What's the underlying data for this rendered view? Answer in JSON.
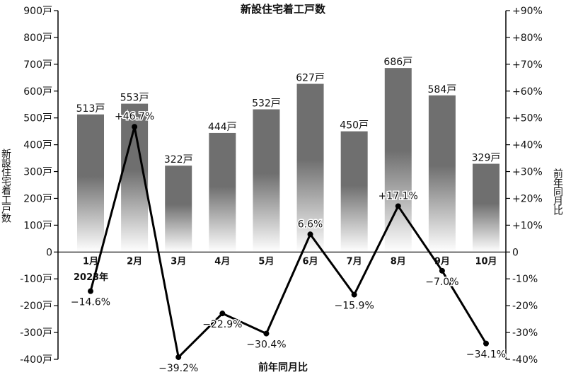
{
  "chart_data": {
    "type": "bar",
    "title": "新設住宅着工戸数",
    "xlabel": "前年同月比",
    "ylabel_left": "新設住宅着工戸数",
    "ylabel_right": "前年同月比",
    "year_label": "2023年",
    "categories": [
      "1月",
      "2月",
      "3月",
      "4月",
      "5月",
      "6月",
      "7月",
      "8月",
      "9月",
      "10月"
    ],
    "bars": {
      "values": [
        513,
        553,
        322,
        444,
        532,
        627,
        450,
        686,
        584,
        329
      ],
      "labels": [
        "513戸",
        "553戸",
        "322戸",
        "444戸",
        "532戸",
        "627戸",
        "450戸",
        "686戸",
        "584戸",
        "329戸"
      ]
    },
    "line": {
      "values": [
        -14.6,
        46.7,
        -39.2,
        -22.9,
        -30.4,
        6.6,
        -15.9,
        17.1,
        -7.0,
        -34.1
      ],
      "labels": [
        "−14.6%",
        "+46.7%",
        "−39.2%",
        "−22.9%",
        "−30.4%",
        "6.6%",
        "−15.9%",
        "+17.1%",
        "−7.0%",
        "−34.1%"
      ]
    },
    "y_left": {
      "range": [
        -400,
        900
      ],
      "ticks": [
        900,
        800,
        700,
        600,
        500,
        400,
        300,
        200,
        100,
        0,
        -100,
        -200,
        -300,
        -400
      ],
      "tick_labels": [
        "900戸",
        "800戸",
        "700戸",
        "600戸",
        "500戸",
        "400戸",
        "300戸",
        "200戸",
        "100戸",
        "0",
        "-100戸",
        "-200戸",
        "-300戸",
        "-400戸"
      ]
    },
    "y_right": {
      "range": [
        -40,
        90
      ],
      "ticks": [
        90,
        80,
        70,
        60,
        50,
        40,
        30,
        20,
        10,
        0,
        -10,
        -20,
        -30,
        -40
      ],
      "tick_labels": [
        "+90%",
        "+80%",
        "+70%",
        "+60%",
        "+50%",
        "+40%",
        "+30%",
        "+20%",
        "+10%",
        "0",
        "-10%",
        "-20%",
        "-30%",
        "-40%"
      ]
    },
    "grid": false,
    "colors": {
      "bar_top": "#6f6f6f",
      "bar_bottom": "#ffffff",
      "line": "#000000"
    }
  }
}
